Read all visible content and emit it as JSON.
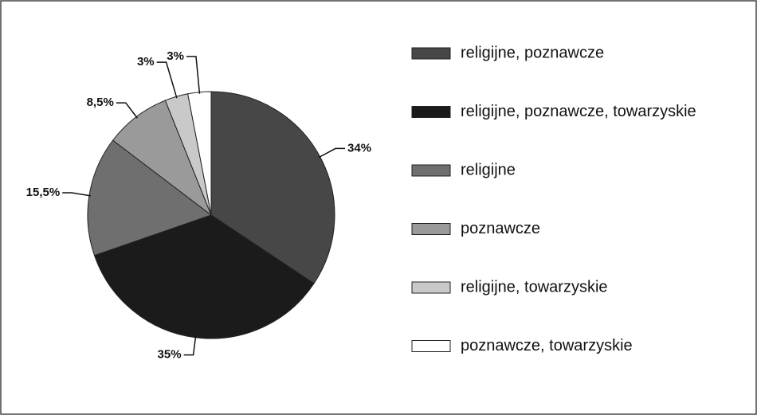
{
  "chart_data": {
    "type": "pie",
    "categories": [
      "religijne, poznawcze",
      "religijne, poznawcze, towarzyskie",
      "religijne",
      "poznawcze",
      "religijne, towarzyskie",
      "poznawcze, towarzyskie"
    ],
    "values": [
      34,
      35,
      15.5,
      8.5,
      3,
      3
    ],
    "value_labels": [
      "34%",
      "35%",
      "15,5%",
      "8,5%",
      "3%",
      "3%"
    ],
    "colors": [
      "#474747",
      "#1b1b1b",
      "#6f6f6f",
      "#9a9a9a",
      "#c9c9c9",
      "#ffffff"
    ],
    "legend": "right"
  }
}
